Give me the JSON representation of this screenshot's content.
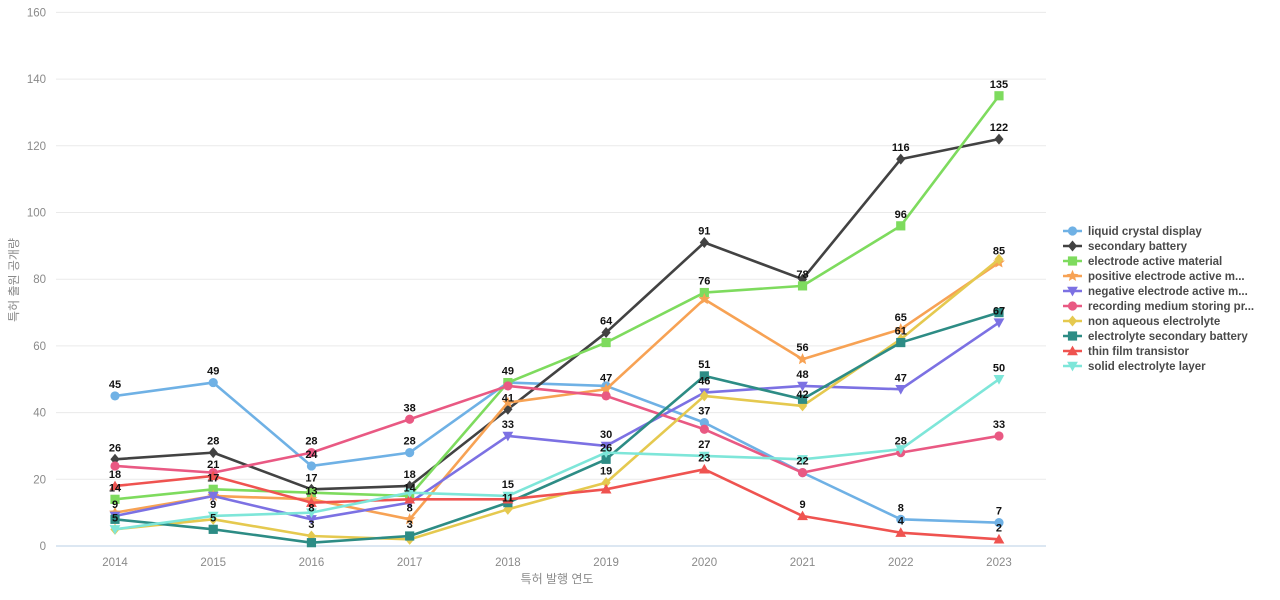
{
  "chart_data": {
    "type": "line",
    "title": "",
    "xlabel": "특허 발행 연도",
    "ylabel": "특허 출원 공개량",
    "x": [
      2014,
      2015,
      2016,
      2017,
      2018,
      2019,
      2020,
      2021,
      2022,
      2023
    ],
    "ylim": [
      0,
      160
    ],
    "yticks": [
      0,
      20,
      40,
      60,
      80,
      100,
      120,
      140,
      160
    ],
    "grid": true,
    "legend_position": "right",
    "series": [
      {
        "name": "liquid crystal display",
        "color": "#6FB1E5",
        "marker": "circle",
        "values": [
          45,
          49,
          24,
          28,
          49,
          48,
          37,
          22,
          8,
          7
        ],
        "labels": [
          45,
          49,
          24,
          28,
          49,
          null,
          37,
          null,
          8,
          7
        ]
      },
      {
        "name": "secondary battery",
        "color": "#424242",
        "color_note": "dark gray",
        "marker": "diamond",
        "values": [
          26,
          28,
          17,
          18,
          41,
          64,
          91,
          80,
          116,
          122
        ],
        "labels": [
          26,
          28,
          17,
          18,
          41,
          64,
          91,
          null,
          116,
          122
        ]
      },
      {
        "name": "electrode active material",
        "color": "#7EDB5E",
        "marker": "square",
        "values": [
          14,
          17,
          16,
          15,
          49,
          61,
          76,
          78,
          96,
          135
        ],
        "labels": [
          14,
          17,
          null,
          null,
          null,
          null,
          76,
          78,
          96,
          135
        ]
      },
      {
        "name": "positive electrode active m...",
        "color": "#F7A254",
        "marker": "star",
        "values": [
          10,
          15,
          14,
          8,
          43,
          47,
          74,
          56,
          65,
          85
        ],
        "labels": [
          null,
          null,
          null,
          8,
          null,
          47,
          null,
          56,
          65,
          85
        ]
      },
      {
        "name": "negative electrode active m...",
        "color": "#7C71E3",
        "marker": "triangle-down",
        "values": [
          9,
          15,
          8,
          13,
          33,
          30,
          46,
          48,
          47,
          67
        ],
        "labels": [
          9,
          null,
          8,
          null,
          33,
          30,
          46,
          48,
          47,
          67
        ]
      },
      {
        "name": "recording medium storing pr...",
        "color": "#E95983",
        "marker": "circle",
        "values": [
          24,
          22,
          28,
          38,
          48,
          45,
          35,
          22,
          28,
          33
        ],
        "labels": [
          null,
          null,
          28,
          38,
          null,
          null,
          null,
          22,
          28,
          33
        ]
      },
      {
        "name": "non aqueous electrolyte",
        "color": "#E5C94F",
        "marker": "diamond",
        "values": [
          5,
          8,
          3,
          2,
          11,
          19,
          45,
          42,
          62,
          86
        ],
        "labels": [
          5,
          null,
          3,
          null,
          11,
          19,
          null,
          42,
          null,
          null
        ]
      },
      {
        "name": "electrolyte secondary battery",
        "color": "#2D8C85",
        "marker": "square",
        "values": [
          8,
          5,
          1,
          3,
          13,
          26,
          51,
          44,
          61,
          70
        ],
        "labels": [
          null,
          5,
          null,
          3,
          null,
          26,
          51,
          null,
          61,
          null
        ]
      },
      {
        "name": "thin film transistor",
        "color": "#EF5350",
        "marker": "triangle-up",
        "values": [
          18,
          21,
          13,
          14,
          14,
          17,
          23,
          9,
          4,
          2
        ],
        "labels": [
          18,
          21,
          13,
          14,
          null,
          null,
          23,
          9,
          4,
          2
        ]
      },
      {
        "name": "solid electrolyte layer",
        "color": "#7EE6D9",
        "marker": "triangle-down",
        "values": [
          5,
          9,
          10,
          16,
          15,
          28,
          27,
          26,
          29,
          50
        ],
        "labels": [
          null,
          9,
          null,
          null,
          15,
          null,
          27,
          null,
          null,
          50
        ]
      }
    ]
  },
  "style_colors": {
    "background": "#ffffff",
    "gridline": "#eaeaea",
    "x_axis_line": "#b8cfe5",
    "tick_text": "#8a8a8a",
    "data_label_text": "#111111",
    "legend_text": "#4a4a4a"
  }
}
